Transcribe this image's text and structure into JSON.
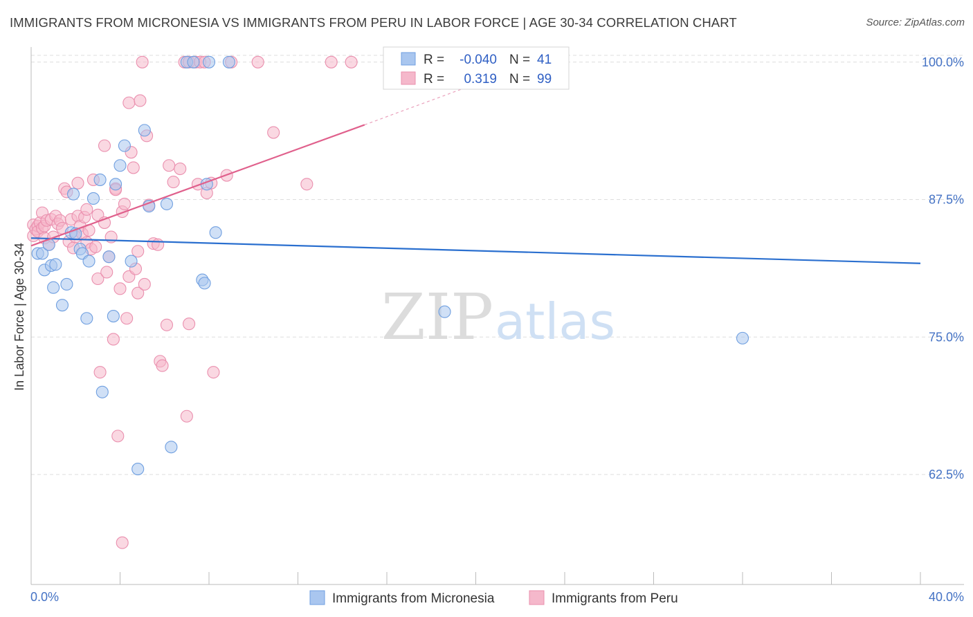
{
  "title": "IMMIGRANTS FROM MICRONESIA VS IMMIGRANTS FROM PERU IN LABOR FORCE | AGE 30-34 CORRELATION CHART",
  "source": "Source: ZipAtlas.com",
  "watermark": {
    "zip": "ZIP",
    "atlas": "atlas"
  },
  "legend_box": {
    "rows": [
      {
        "r_label": "R =",
        "r_value": "-0.040",
        "n_label": "N =",
        "n_value": "41",
        "color": "#a9c6ef"
      },
      {
        "r_label": "R =",
        "r_value": "0.319",
        "n_label": "N =",
        "n_value": "99",
        "color": "#f5b8cb"
      }
    ]
  },
  "chart_data": {
    "type": "scatter",
    "ylabel": "In Labor Force | Age 30-34",
    "xlabel": "",
    "xlim": [
      0,
      40
    ],
    "ylim": [
      52.5,
      102
    ],
    "x_tick_labels": [
      "0.0%",
      "40.0%"
    ],
    "y_ticks": [
      62.5,
      75.0,
      87.5,
      100.0
    ],
    "y_tick_labels": [
      "62.5%",
      "75.0%",
      "87.5%",
      "100.0%"
    ],
    "grid": "horizontal dashed",
    "legend_position": "bottom-center",
    "series": [
      {
        "name": "Immigrants from Micronesia",
        "color": "#6f9fe0",
        "fill": "#a9c6ef",
        "trend": {
          "x": [
            0,
            40
          ],
          "y": [
            84.0,
            81.7
          ]
        },
        "points": [
          [
            0.3,
            82.6
          ],
          [
            0.5,
            82.6
          ],
          [
            0.6,
            81.1
          ],
          [
            0.8,
            83.4
          ],
          [
            0.9,
            81.5
          ],
          [
            1.0,
            79.5
          ],
          [
            1.1,
            81.6
          ],
          [
            1.4,
            77.9
          ],
          [
            1.6,
            79.8
          ],
          [
            1.8,
            84.5
          ],
          [
            1.9,
            88.0
          ],
          [
            2.0,
            84.4
          ],
          [
            2.2,
            83.0
          ],
          [
            2.3,
            82.6
          ],
          [
            2.5,
            76.7
          ],
          [
            2.6,
            81.9
          ],
          [
            2.8,
            87.6
          ],
          [
            3.1,
            89.3
          ],
          [
            3.2,
            70.0
          ],
          [
            3.5,
            82.3
          ],
          [
            3.7,
            76.9
          ],
          [
            3.8,
            88.9
          ],
          [
            4.0,
            90.6
          ],
          [
            4.2,
            92.4
          ],
          [
            4.5,
            81.9
          ],
          [
            4.8,
            63.0
          ],
          [
            5.1,
            93.8
          ],
          [
            5.3,
            86.9
          ],
          [
            6.1,
            87.1
          ],
          [
            6.3,
            65.0
          ],
          [
            7.0,
            100.0
          ],
          [
            7.3,
            100.0
          ],
          [
            7.7,
            80.2
          ],
          [
            7.8,
            79.9
          ],
          [
            7.9,
            88.9
          ],
          [
            8.0,
            100.0
          ],
          [
            8.3,
            84.5
          ],
          [
            8.9,
            100.0
          ],
          [
            18.6,
            77.3
          ],
          [
            32.0,
            74.9
          ]
        ]
      },
      {
        "name": "Immigrants from Peru",
        "color": "#ea8fae",
        "fill": "#f5b8cb",
        "trend": {
          "x": [
            0,
            15
          ],
          "y": [
            83.3,
            94.3
          ]
        },
        "trend_ext": {
          "x": [
            15,
            22
          ],
          "y": [
            94.3,
            99.5
          ]
        },
        "points": [
          [
            0.1,
            84.2
          ],
          [
            0.1,
            85.2
          ],
          [
            0.2,
            84.8
          ],
          [
            0.3,
            85.1
          ],
          [
            0.3,
            84.6
          ],
          [
            0.4,
            85.4
          ],
          [
            0.5,
            84.9
          ],
          [
            0.5,
            86.3
          ],
          [
            0.6,
            85.1
          ],
          [
            0.6,
            84.0
          ],
          [
            0.7,
            85.6
          ],
          [
            0.8,
            83.4
          ],
          [
            0.9,
            85.7
          ],
          [
            1.0,
            84.1
          ],
          [
            1.1,
            86.0
          ],
          [
            1.2,
            85.3
          ],
          [
            1.3,
            85.6
          ],
          [
            1.4,
            84.9
          ],
          [
            1.5,
            88.5
          ],
          [
            1.6,
            88.2
          ],
          [
            1.7,
            83.7
          ],
          [
            1.8,
            85.7
          ],
          [
            1.9,
            83.1
          ],
          [
            2.0,
            84.1
          ],
          [
            2.1,
            89.0
          ],
          [
            2.1,
            86.0
          ],
          [
            2.2,
            85.1
          ],
          [
            2.3,
            84.4
          ],
          [
            2.4,
            85.9
          ],
          [
            2.5,
            83.6
          ],
          [
            2.5,
            86.6
          ],
          [
            2.6,
            84.7
          ],
          [
            2.7,
            83.0
          ],
          [
            2.8,
            89.3
          ],
          [
            2.9,
            83.2
          ],
          [
            3.0,
            80.3
          ],
          [
            3.0,
            86.1
          ],
          [
            3.1,
            71.8
          ],
          [
            3.3,
            85.4
          ],
          [
            3.3,
            92.4
          ],
          [
            3.4,
            80.9
          ],
          [
            3.5,
            82.3
          ],
          [
            3.6,
            84.1
          ],
          [
            3.7,
            74.8
          ],
          [
            3.8,
            88.5
          ],
          [
            3.8,
            88.4
          ],
          [
            3.9,
            66.0
          ],
          [
            4.0,
            79.4
          ],
          [
            4.1,
            86.4
          ],
          [
            4.2,
            87.1
          ],
          [
            4.3,
            76.7
          ],
          [
            4.4,
            80.5
          ],
          [
            4.4,
            96.3
          ],
          [
            4.5,
            91.8
          ],
          [
            4.6,
            90.4
          ],
          [
            4.7,
            81.2
          ],
          [
            4.8,
            79.0
          ],
          [
            4.8,
            82.8
          ],
          [
            4.9,
            96.5
          ],
          [
            5.0,
            100.0
          ],
          [
            5.1,
            79.8
          ],
          [
            5.2,
            93.3
          ],
          [
            5.3,
            87.0
          ],
          [
            5.5,
            83.5
          ],
          [
            5.7,
            83.4
          ],
          [
            5.8,
            72.8
          ],
          [
            5.9,
            72.4
          ],
          [
            6.1,
            76.1
          ],
          [
            6.2,
            90.6
          ],
          [
            6.4,
            89.1
          ],
          [
            6.7,
            90.3
          ],
          [
            6.9,
            100.0
          ],
          [
            7.0,
            67.8
          ],
          [
            7.1,
            76.2
          ],
          [
            7.1,
            100.0
          ],
          [
            7.4,
            100.0
          ],
          [
            7.5,
            88.9
          ],
          [
            7.6,
            100.0
          ],
          [
            7.8,
            100.0
          ],
          [
            7.9,
            88.1
          ],
          [
            8.1,
            89.0
          ],
          [
            8.2,
            71.8
          ],
          [
            8.8,
            89.7
          ],
          [
            9.0,
            100.0
          ],
          [
            10.2,
            100.0
          ],
          [
            10.9,
            93.6
          ],
          [
            12.4,
            88.9
          ],
          [
            13.5,
            100.0
          ],
          [
            14.4,
            100.0
          ],
          [
            4.1,
            56.3
          ]
        ]
      }
    ]
  },
  "bottom_legend": [
    {
      "label": "Immigrants from Micronesia",
      "color": "#a9c6ef"
    },
    {
      "label": "Immigrants from Peru",
      "color": "#f5b8cb"
    }
  ]
}
